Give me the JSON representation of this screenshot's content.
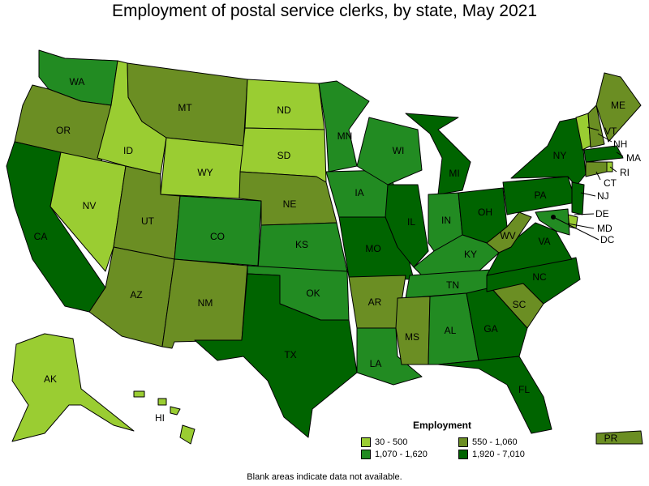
{
  "title": "Employment of postal service clerks, by state, May 2021",
  "note": "Blank areas indicate data not available.",
  "legend": {
    "title": "Employment",
    "items": [
      {
        "label": "30 - 500",
        "color": "#9acd32"
      },
      {
        "label": "550 - 1,060",
        "color": "#6b8e23"
      },
      {
        "label": "1,070 - 1,620",
        "color": "#228b22"
      },
      {
        "label": "1,920 - 7,010",
        "color": "#006400"
      }
    ]
  },
  "states": {
    "WA": "WA",
    "OR": "OR",
    "CA": "CA",
    "NV": "NV",
    "ID": "ID",
    "MT": "MT",
    "WY": "WY",
    "UT": "UT",
    "AZ": "AZ",
    "CO": "CO",
    "NM": "NM",
    "ND": "ND",
    "SD": "SD",
    "NE": "NE",
    "KS": "KS",
    "OK": "OK",
    "TX": "TX",
    "MN": "MN",
    "IA": "IA",
    "MO": "MO",
    "AR": "AR",
    "LA": "LA",
    "WI": "WI",
    "IL": "IL",
    "MI": "MI",
    "IN": "IN",
    "OH": "OH",
    "KY": "KY",
    "TN": "TN",
    "MS": "MS",
    "AL": "AL",
    "GA": "GA",
    "FL": "FL",
    "SC": "SC",
    "NC": "NC",
    "VA": "VA",
    "WV": "WV",
    "PA": "PA",
    "NY": "NY",
    "VT": "VT",
    "NH": "NH",
    "ME": "ME",
    "MA": "MA",
    "RI": "RI",
    "CT": "CT",
    "NJ": "NJ",
    "DE": "DE",
    "MD": "MD",
    "DC": "DC",
    "AK": "AK",
    "HI": "HI",
    "PR": "PR"
  }
}
